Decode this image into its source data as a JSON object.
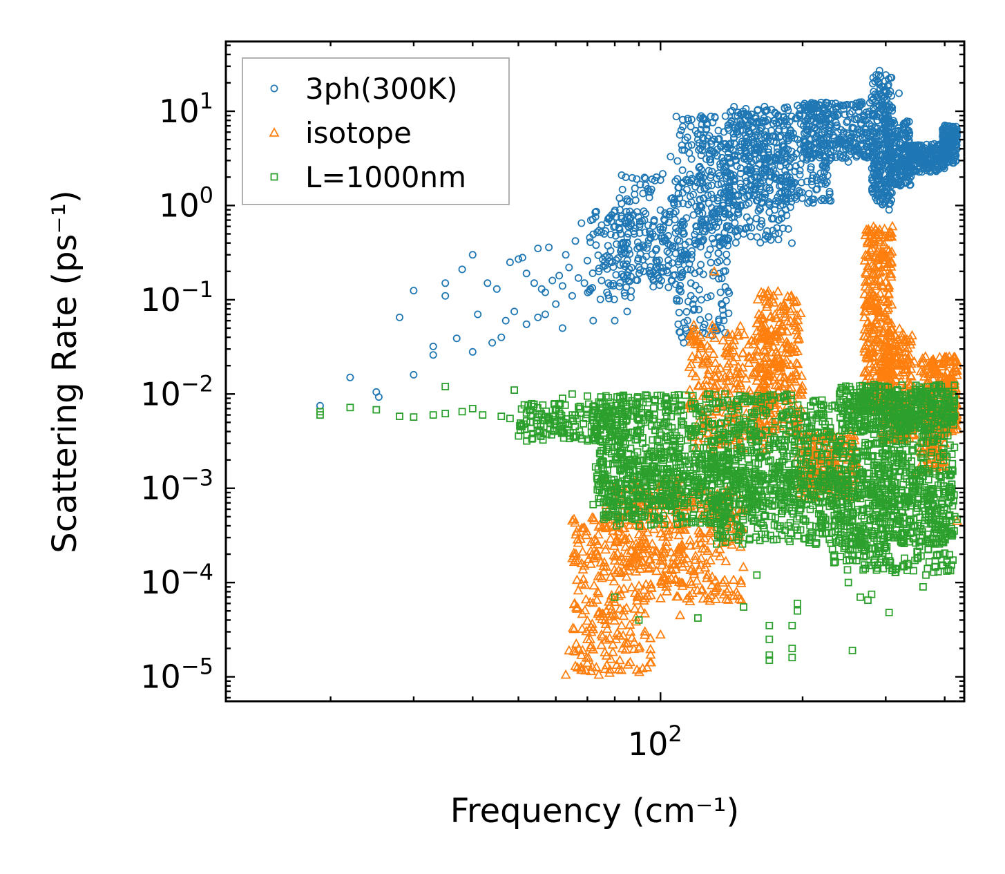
{
  "chart_data": {
    "type": "scatter",
    "title": "",
    "xlabel": "Frequency (cm⁻¹)",
    "ylabel": "Scattering Rate (ps⁻¹)",
    "xscale": "log",
    "yscale": "log",
    "xlim": [
      12,
      440
    ],
    "ylim": [
      5.5e-06,
      55
    ],
    "x_tick_labels": [
      {
        "value": 100,
        "base": "10",
        "exp": "2"
      }
    ],
    "y_tick_labels": [
      {
        "value": 10,
        "base": "10",
        "exp": "1"
      },
      {
        "value": 1,
        "base": "10",
        "exp": "0"
      },
      {
        "value": 0.1,
        "base": "10",
        "exp": "−1"
      },
      {
        "value": 0.01,
        "base": "10",
        "exp": "−2"
      },
      {
        "value": 0.001,
        "base": "10",
        "exp": "−3"
      },
      {
        "value": 0.0001,
        "base": "10",
        "exp": "−4"
      },
      {
        "value": 1e-05,
        "base": "10",
        "exp": "−5"
      }
    ],
    "legend_position": "top-left",
    "series": [
      {
        "name": "3ph(300K)",
        "marker": "circle",
        "color": "#1f77b4",
        "points": [
          [
            19,
            0.0075
          ],
          [
            22,
            0.015
          ],
          [
            25,
            0.0105
          ],
          [
            25.3,
            0.0093
          ],
          [
            28,
            0.065
          ],
          [
            30,
            0.125
          ],
          [
            30,
            0.016
          ],
          [
            33,
            0.032
          ],
          [
            33,
            0.026
          ],
          [
            35,
            0.15
          ],
          [
            35,
            0.11
          ],
          [
            37,
            0.039
          ],
          [
            38,
            0.21
          ],
          [
            40,
            0.028
          ],
          [
            40,
            0.3
          ],
          [
            41,
            0.07
          ],
          [
            43,
            0.15
          ],
          [
            44,
            0.035
          ],
          [
            45,
            0.13
          ],
          [
            46,
            0.04
          ],
          [
            47,
            0.06
          ],
          [
            48,
            0.25
          ],
          [
            49,
            0.075
          ],
          [
            50,
            0.27
          ],
          [
            51,
            0.28
          ],
          [
            52,
            0.055
          ],
          [
            52,
            0.19
          ],
          [
            54,
            0.15
          ],
          [
            55,
            0.35
          ],
          [
            55,
            0.065
          ],
          [
            56,
            0.13
          ],
          [
            57,
            0.12
          ],
          [
            57,
            0.07
          ],
          [
            58,
            0.36
          ],
          [
            59,
            0.16
          ],
          [
            60,
            0.09
          ],
          [
            61,
            0.18
          ],
          [
            62,
            0.14
          ],
          [
            62,
            0.05
          ],
          [
            63,
            0.3
          ],
          [
            64,
            0.22
          ],
          [
            65,
            0.11
          ],
          [
            66,
            0.42
          ],
          [
            67,
            0.17
          ],
          [
            68,
            0.65
          ],
          [
            69,
            0.15
          ],
          [
            70,
            0.26
          ],
          [
            71,
            0.13
          ],
          [
            72,
            0.06
          ],
          [
            73,
            0.38
          ],
          [
            74,
            0.2
          ],
          [
            75,
            0.16
          ],
          [
            76,
            0.5
          ],
          [
            77,
            0.12
          ],
          [
            78,
            0.75
          ],
          [
            79,
            0.25
          ],
          [
            80,
            0.06
          ],
          [
            82,
            0.9
          ],
          [
            84,
            0.35
          ],
          [
            85,
            0.075
          ],
          [
            86,
            1.1
          ],
          [
            88,
            0.5
          ],
          [
            90,
            0.22
          ],
          [
            92,
            0.2
          ],
          [
            94,
            1.5
          ],
          [
            96,
            1.9
          ],
          [
            98,
            2.0
          ],
          [
            105,
            3.3
          ],
          [
            106,
            1.2
          ],
          [
            108,
            8.8
          ],
          [
            109,
            0.055
          ],
          [
            110,
            0.045
          ],
          [
            111,
            0.04
          ],
          [
            112,
            0.035
          ],
          [
            113,
            0.05
          ],
          [
            114,
            0.06
          ],
          [
            115,
            3.6
          ],
          [
            116,
            0.15
          ],
          [
            117,
            0.09
          ],
          [
            118,
            0.08
          ],
          [
            120,
            5.0
          ],
          [
            121,
            0.2
          ],
          [
            122,
            0.1
          ],
          [
            124,
            0.055
          ],
          [
            126,
            0.3
          ],
          [
            128,
            0.7
          ],
          [
            130,
            0.4
          ],
          [
            132,
            0.25
          ],
          [
            134,
            0.12
          ],
          [
            136,
            0.2
          ],
          [
            140,
            0.8
          ],
          [
            150,
            0.5
          ],
          [
            160,
            1.3
          ],
          [
            170,
            0.85
          ],
          [
            175,
            0.5
          ],
          [
            185,
            1.1
          ],
          [
            195,
            11.5
          ],
          [
            250,
            2.9
          ],
          [
            285,
            12.5
          ],
          [
            291,
            27
          ],
          [
            300,
            6
          ],
          [
            305,
            0.9
          ],
          [
            320,
            15.5
          ],
          [
            330,
            3.2
          ],
          [
            380,
            4.5
          ],
          [
            400,
            7
          ],
          [
            415,
            4.5
          ],
          [
            418,
            3.0
          ],
          [
            420,
            3.2
          ]
        ],
        "envelopes": [
          {
            "x_range": [
              70,
              115
            ],
            "log_y_low": -1.0,
            "log_y_high": -0.05,
            "density": 160
          },
          {
            "x_range": [
              80,
              112
            ],
            "log_y_low": -0.8,
            "log_y_high": 0.35,
            "density": 120
          },
          {
            "x_range": [
              108,
              140
            ],
            "log_y_low": -1.4,
            "log_y_high": 0.95,
            "density": 220
          },
          {
            "x_range": [
              120,
              190
            ],
            "log_y_low": -0.4,
            "log_y_high": 0.95,
            "density": 320
          },
          {
            "x_range": [
              140,
              230
            ],
            "log_y_low": 0.0,
            "log_y_high": 1.05,
            "density": 340
          },
          {
            "x_range": [
              200,
              280
            ],
            "log_y_low": 0.5,
            "log_y_high": 1.1,
            "density": 260
          },
          {
            "x_range": [
              280,
              310
            ],
            "log_y_low": 0.0,
            "log_y_high": 1.4,
            "density": 260
          },
          {
            "x_range": [
              300,
              340
            ],
            "log_y_low": 0.2,
            "log_y_high": 0.9,
            "density": 200
          },
          {
            "x_range": [
              330,
              400
            ],
            "log_y_low": 0.35,
            "log_y_high": 0.65,
            "density": 220
          },
          {
            "x_range": [
              395,
              425
            ],
            "log_y_low": 0.45,
            "log_y_high": 0.85,
            "density": 160
          }
        ]
      },
      {
        "name": "isotope",
        "marker": "triangle",
        "color": "#ff7f0e",
        "points": [
          [
            63,
            1.05e-05
          ],
          [
            64,
            1.9e-05
          ],
          [
            66,
            1.3e-05
          ],
          [
            68,
            1.7e-05
          ],
          [
            70,
            2.5e-05
          ],
          [
            70,
            1.4e-05
          ],
          [
            72,
            3.2e-05
          ],
          [
            74,
            1.05e-05
          ],
          [
            75,
            2.8e-05
          ],
          [
            78,
            1.1e-05
          ],
          [
            80,
            4.5e-05
          ],
          [
            82,
            1.5e-05
          ],
          [
            90,
            2e-05
          ],
          [
            100,
            2.8e-05
          ],
          [
            110,
            4.5e-05
          ],
          [
            130,
            0.2
          ],
          [
            140,
            0.04
          ],
          [
            210,
            0.0011
          ],
          [
            225,
            0.0012
          ],
          [
            260,
            0.007
          ],
          [
            262,
            0.004
          ],
          [
            350,
            0.0015
          ],
          [
            385,
            0.006
          ],
          [
            400,
            0.003
          ],
          [
            425,
            0.00045
          ]
        ],
        "envelopes": [
          {
            "x_range": [
              65,
              96
            ],
            "log_y_low": -4.95,
            "log_y_high": -3.3,
            "density": 240
          },
          {
            "x_range": [
              76,
              112
            ],
            "log_y_low": -3.9,
            "log_y_high": -2.9,
            "density": 160
          },
          {
            "x_range": [
              100,
              150
            ],
            "log_y_low": -4.2,
            "log_y_high": -3.0,
            "density": 220
          },
          {
            "x_range": [
              115,
              170
            ],
            "log_y_low": -2.6,
            "log_y_high": -1.25,
            "density": 260
          },
          {
            "x_range": [
              160,
              200
            ],
            "log_y_low": -2.4,
            "log_y_high": -0.9,
            "density": 240
          },
          {
            "x_range": [
              195,
              260
            ],
            "log_y_low": -3.1,
            "log_y_high": -2.4,
            "density": 200
          },
          {
            "x_range": [
              270,
              310
            ],
            "log_y_low": -2.2,
            "log_y_high": -0.2,
            "density": 300
          },
          {
            "x_range": [
              295,
              345
            ],
            "log_y_low": -2.5,
            "log_y_high": -1.3,
            "density": 200
          },
          {
            "x_range": [
              355,
              400
            ],
            "log_y_low": -2.8,
            "log_y_high": -1.6,
            "density": 180
          },
          {
            "x_range": [
              400,
              425
            ],
            "log_y_low": -2.4,
            "log_y_high": -1.6,
            "density": 120
          }
        ]
      },
      {
        "name": "L=1000nm",
        "marker": "square",
        "color": "#2ca02c",
        "points": [
          [
            19,
            0.0065
          ],
          [
            19,
            0.006
          ],
          [
            22,
            0.0072
          ],
          [
            25,
            0.0068
          ],
          [
            28,
            0.0058
          ],
          [
            30,
            0.0057
          ],
          [
            33,
            0.006
          ],
          [
            35,
            0.0062
          ],
          [
            35,
            0.012
          ],
          [
            38,
            0.0065
          ],
          [
            40,
            0.007
          ],
          [
            42,
            0.006
          ],
          [
            46,
            0.0058
          ],
          [
            48,
            0.0055
          ],
          [
            49,
            0.011
          ],
          [
            52,
            0.0063
          ],
          [
            55,
            0.0057
          ],
          [
            58,
            0.0052
          ],
          [
            62,
            0.009
          ],
          [
            65,
            0.01
          ],
          [
            70,
            0.0095
          ],
          [
            75,
            0.0048
          ],
          [
            80,
            0.0065
          ],
          [
            80,
            7e-05
          ],
          [
            85,
            0.00055
          ],
          [
            90,
            4e-05
          ],
          [
            92,
            0.0053
          ],
          [
            120,
            4.2e-05
          ],
          [
            150,
            5.5e-05
          ],
          [
            160,
            0.00012
          ],
          [
            170,
            3.5e-05
          ],
          [
            170,
            2.5e-05
          ],
          [
            170,
            1.7e-05
          ],
          [
            170,
            1.5e-05
          ],
          [
            190,
            3.5e-05
          ],
          [
            190,
            2e-05
          ],
          [
            190,
            1.6e-05
          ],
          [
            195,
            5e-05
          ],
          [
            195,
            6e-05
          ],
          [
            250,
            0.0001
          ],
          [
            255,
            1.9e-05
          ],
          [
            265,
            7e-05
          ],
          [
            275,
            6.5e-05
          ],
          [
            280,
            7.5e-05
          ],
          [
            305,
            4.8e-05
          ],
          [
            360,
            9e-05
          ],
          [
            365,
            0.00012
          ],
          [
            420,
            0.0005
          ],
          [
            425,
            0.00047
          ]
        ],
        "envelopes": [
          {
            "x_range": [
              50,
              85
            ],
            "log_y_low": -2.5,
            "log_y_high": -2.1,
            "density": 180
          },
          {
            "x_range": [
              72,
              420
            ],
            "log_y_low": -3.2,
            "log_y_high": -2.0,
            "density": 1400
          },
          {
            "x_range": [
              75,
              140
            ],
            "log_y_low": -3.4,
            "log_y_high": -2.6,
            "density": 300
          },
          {
            "x_range": [
              130,
              420
            ],
            "log_y_low": -3.6,
            "log_y_high": -2.8,
            "density": 500
          },
          {
            "x_range": [
              230,
              420
            ],
            "log_y_low": -3.9,
            "log_y_high": -3.0,
            "density": 260
          },
          {
            "x_range": [
              240,
              420
            ],
            "log_y_low": -2.4,
            "log_y_high": -1.9,
            "density": 320
          }
        ]
      }
    ]
  }
}
